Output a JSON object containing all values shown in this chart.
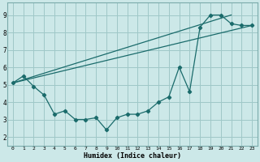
{
  "title": "",
  "xlabel": "Humidex (Indice chaleur)",
  "xlim": [
    -0.5,
    23.5
  ],
  "ylim": [
    1.5,
    9.7
  ],
  "xticks": [
    0,
    1,
    2,
    3,
    4,
    5,
    6,
    7,
    8,
    9,
    10,
    11,
    12,
    13,
    14,
    15,
    16,
    17,
    18,
    19,
    20,
    21,
    22,
    23
  ],
  "yticks": [
    2,
    3,
    4,
    5,
    6,
    7,
    8,
    9
  ],
  "bg_color": "#cce8e8",
  "grid_color": "#9fc8c8",
  "line_color": "#1a6b6b",
  "data_points": [
    [
      0,
      5.1
    ],
    [
      1,
      5.5
    ],
    [
      2,
      4.9
    ],
    [
      3,
      4.4
    ],
    [
      4,
      3.3
    ],
    [
      5,
      3.5
    ],
    [
      6,
      3.0
    ],
    [
      7,
      3.0
    ],
    [
      8,
      3.1
    ],
    [
      9,
      2.4
    ],
    [
      10,
      3.1
    ],
    [
      11,
      3.3
    ],
    [
      12,
      3.3
    ],
    [
      13,
      3.5
    ],
    [
      14,
      4.0
    ],
    [
      15,
      4.3
    ],
    [
      16,
      6.0
    ],
    [
      17,
      4.6
    ],
    [
      18,
      8.3
    ],
    [
      19,
      9.0
    ],
    [
      20,
      9.0
    ],
    [
      21,
      8.5
    ],
    [
      22,
      8.4
    ],
    [
      23,
      8.4
    ]
  ],
  "diag_line1": [
    [
      0,
      5.1
    ],
    [
      23,
      8.4
    ]
  ],
  "diag_line2": [
    [
      0,
      5.1
    ],
    [
      21,
      9.0
    ]
  ]
}
